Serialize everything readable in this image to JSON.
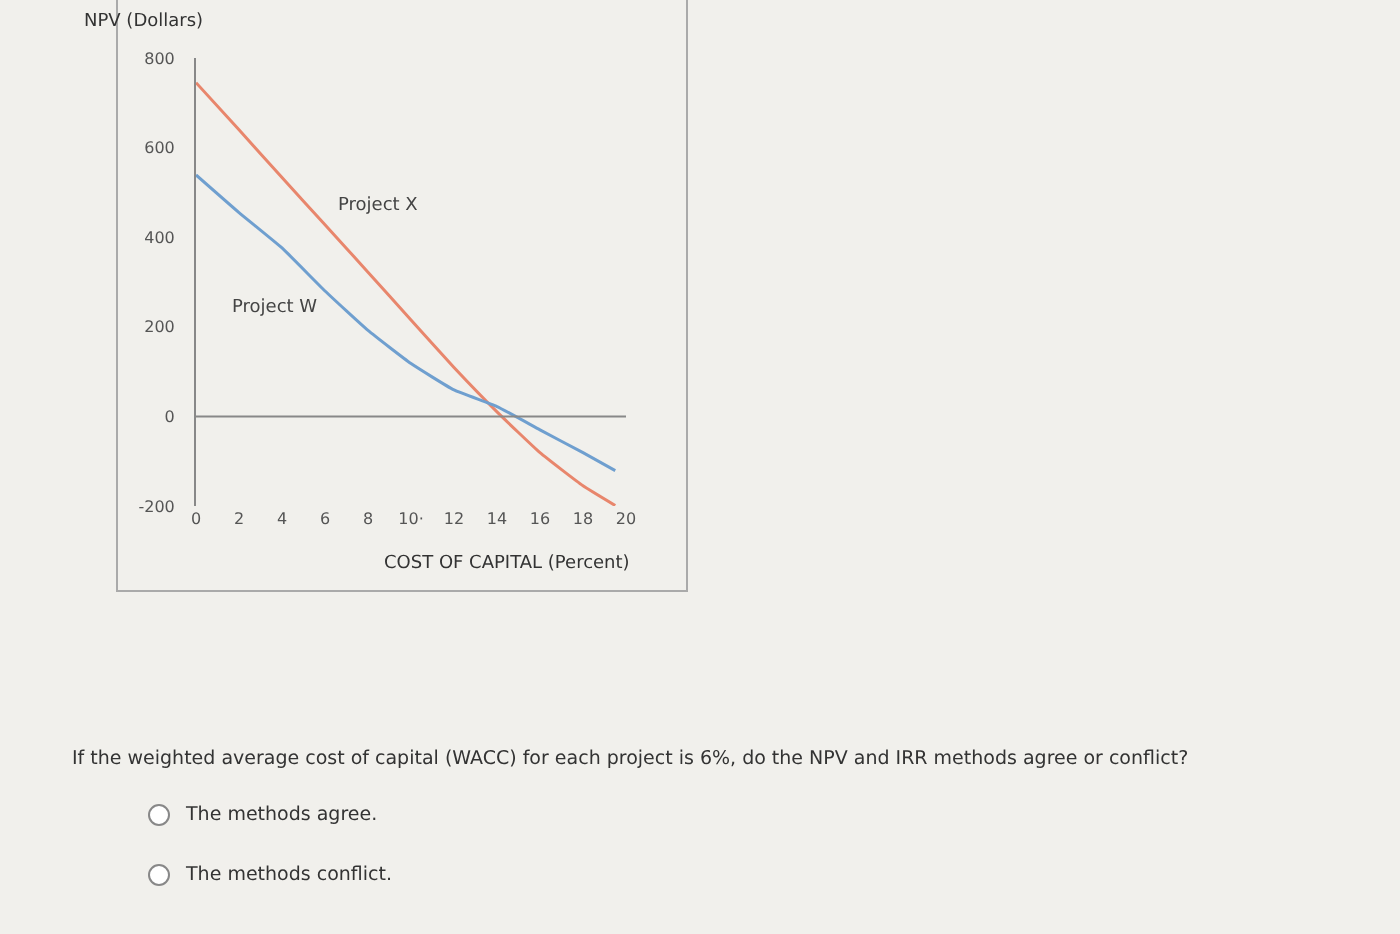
{
  "chart_data": {
    "type": "line",
    "xlabel": "COST OF CAPITAL (Percent)",
    "ylabel": "NPV (Dollars)",
    "x": [
      0,
      2,
      4,
      6,
      8,
      10,
      12,
      14,
      16,
      18,
      19.5
    ],
    "series": [
      {
        "name": "Project X",
        "color": "#e8866c",
        "values": [
          745,
          640,
          533,
          428,
          322,
          215,
          109,
          10,
          -81,
          -155,
          -199
        ]
      },
      {
        "name": "Project W",
        "color": "#6f9fcf",
        "values": [
          539,
          455,
          376,
          280,
          192,
          118,
          59,
          22,
          -30,
          -81,
          -121
        ]
      }
    ],
    "xlim": [
      0,
      20
    ],
    "xticks": [
      0,
      2,
      4,
      6,
      8,
      {
        "value": 10,
        "label": "10·"
      },
      12,
      14,
      16,
      18,
      20
    ],
    "ylim": [
      -200,
      800
    ],
    "yticks": [
      -200,
      0,
      200,
      400,
      600,
      800
    ],
    "ref_lines": [
      {
        "axis": "y",
        "value": 0,
        "color": "#888888"
      }
    ],
    "legend": false,
    "line_style": "solid",
    "marker": "none",
    "annotations": [
      "If the weighted average cost of capital (WACC) for each project is 6%, do the NPV and IRR methods agree or conflict?",
      "The methods agree.",
      "The methods conflict."
    ]
  }
}
